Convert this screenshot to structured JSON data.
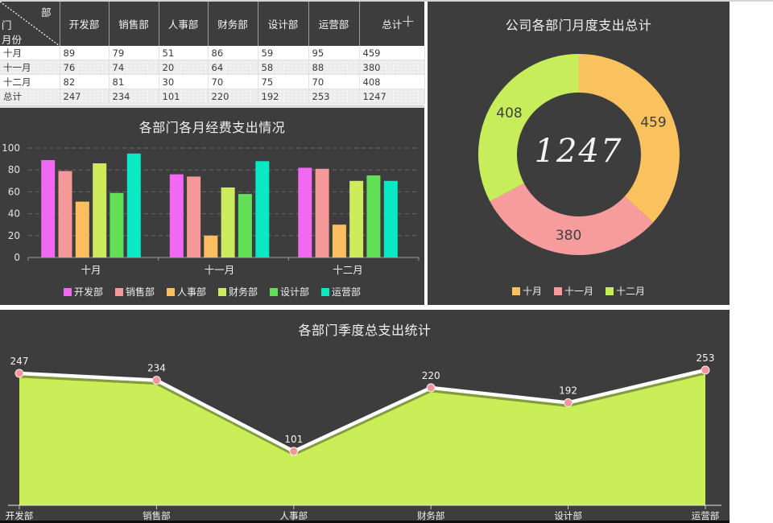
{
  "colors": {
    "panel_bg": "#3d3d3d",
    "spreadsheet_strip": "#d5d5d5",
    "table_stripe": "#ececec",
    "grid_line": "rgba(255,255,255,0.22)",
    "axis_line": "#9a9a9a",
    "label_light": "#f0f0f0",
    "donut_value_label": "#3f3f3f"
  },
  "table": {
    "corner": {
      "col_top": "部",
      "col_wrap": "门",
      "row_label": "月份"
    },
    "columns": [
      "开发部",
      "销售部",
      "人事部",
      "财务部",
      "设计部",
      "运营部",
      "总计"
    ],
    "rows": [
      {
        "label": "十月",
        "values": [
          89,
          79,
          51,
          86,
          59,
          95,
          459
        ]
      },
      {
        "label": "十一月",
        "values": [
          76,
          74,
          20,
          64,
          58,
          88,
          380
        ]
      },
      {
        "label": "十二月",
        "values": [
          82,
          81,
          30,
          70,
          75,
          70,
          408
        ]
      },
      {
        "label": "总计",
        "values": [
          247,
          234,
          101,
          220,
          192,
          253,
          1247
        ]
      }
    ]
  },
  "cursor_glyph": "+",
  "chart_data": [
    {
      "id": "monthly-bars",
      "type": "bar",
      "title": "各部门各月经费支出情况",
      "categories": [
        "十月",
        "十一月",
        "十二月"
      ],
      "series": [
        {
          "name": "开发部",
          "color": "#f169f3",
          "values": [
            89,
            76,
            82
          ]
        },
        {
          "name": "销售部",
          "color": "#f59898",
          "values": [
            79,
            74,
            81
          ]
        },
        {
          "name": "人事部",
          "color": "#fcbe5e",
          "values": [
            51,
            20,
            30
          ]
        },
        {
          "name": "财务部",
          "color": "#cdeb5c",
          "values": [
            86,
            64,
            70
          ]
        },
        {
          "name": "设计部",
          "color": "#62df56",
          "values": [
            59,
            58,
            75
          ]
        },
        {
          "name": "运营部",
          "color": "#09e9c3",
          "values": [
            95,
            88,
            70
          ]
        }
      ],
      "ylim": [
        0,
        100
      ],
      "yticks": [
        0,
        20,
        40,
        60,
        80,
        100
      ],
      "grid": "dashed",
      "legend_position": "bottom"
    },
    {
      "id": "monthly-donut",
      "type": "pie",
      "title": "公司各部门月度支出总计",
      "center_label": "1247",
      "slices": [
        {
          "name": "十月",
          "value": 459,
          "color": "#f9c25f"
        },
        {
          "name": "十一月",
          "value": 380,
          "color": "#f69c9c"
        },
        {
          "name": "十二月",
          "value": 408,
          "color": "#c7ed5b"
        }
      ],
      "legend_position": "bottom"
    },
    {
      "id": "quarter-area",
      "type": "area",
      "title": "各部门季度总支出统计",
      "categories": [
        "开发部",
        "销售部",
        "人事部",
        "财务部",
        "设计部",
        "运营部"
      ],
      "values": [
        247,
        234,
        101,
        220,
        192,
        253
      ],
      "fill_color": "#c9ee58",
      "line_color": "#ffffff",
      "marker_color": "#f2959a",
      "ylim": [
        0,
        300
      ]
    }
  ]
}
